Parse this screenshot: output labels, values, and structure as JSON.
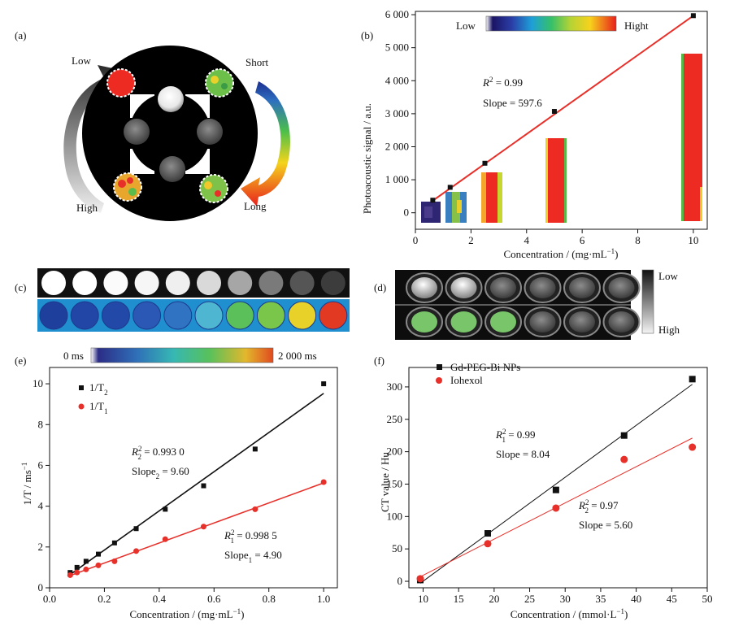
{
  "figure": {
    "panels": [
      {
        "id": "a",
        "label": "(a)",
        "annotations": {
          "low": "Low",
          "high": "High",
          "short": "Short",
          "long": "Long"
        }
      },
      {
        "id": "c",
        "label": "(c)",
        "row_count": 2,
        "wells_per_row": 10
      },
      {
        "id": "d",
        "label": "(d)",
        "legend_low": "Low",
        "legend_high": "High"
      }
    ]
  },
  "colors": {
    "line_red": "#e8302a",
    "marker_black": "#111111",
    "marker_red": "#e8302a",
    "pa_red": "#ee2b22",
    "bg_black": "#000000"
  },
  "chart_data": [
    {
      "id": "b",
      "panel_label": "(b)",
      "type": "scatter",
      "xlabel": "Concentration / (mg·mL",
      "xlabel_sup": "−1",
      "xlabel_end": ")",
      "ylabel": "Photoacoustic signal / a.u.",
      "xlim": [
        0,
        10.5
      ],
      "ylim": [
        -500,
        6100
      ],
      "x_ticks": [
        0,
        2,
        4,
        6,
        8,
        10
      ],
      "x_tick_labels": [
        "0",
        "2",
        "4",
        "6",
        "8",
        "10"
      ],
      "y_ticks": [
        0,
        1000,
        2000,
        3000,
        4000,
        5000,
        6000
      ],
      "y_tick_labels": [
        "0",
        "1 000",
        "2 000",
        "3 000",
        "4 000",
        "5 000",
        "6 000"
      ],
      "colorbar": {
        "low": "Low",
        "high": "Hight"
      },
      "series": [
        {
          "x": [
            0.625,
            1.25,
            2.5,
            5,
            10
          ],
          "y": [
            380,
            770,
            1500,
            3070,
            5970
          ]
        }
      ],
      "fit": {
        "x": [
          0.625,
          10
        ],
        "y": [
          365,
          5970
        ]
      },
      "annotations": [
        {
          "text_italic": "R",
          "sup": "2",
          "text": " = 0.99"
        },
        {
          "text": "Slope = 597.6"
        }
      ],
      "grid": false
    },
    {
      "id": "e",
      "panel_label": "(e)",
      "type": "scatter",
      "xlabel": "Concentration / (mg·mL",
      "xlabel_sup": "−1",
      "xlabel_end": ")",
      "ylabel": "1/T / ms",
      "ylabel_sup": "−1",
      "xlim": [
        0,
        1.05
      ],
      "ylim": [
        0,
        10.8
      ],
      "x_ticks": [
        0,
        0.2,
        0.4,
        0.6,
        0.8,
        1.0
      ],
      "x_tick_labels": [
        "0.0",
        "0.2",
        "0.4",
        "0.6",
        "0.8",
        "1.0"
      ],
      "y_ticks": [
        0,
        2,
        4,
        6,
        8,
        10
      ],
      "y_tick_labels": [
        "0",
        "2",
        "4",
        "6",
        "8",
        "10"
      ],
      "colorbar": {
        "low": "0 ms",
        "high": "2 000 ms"
      },
      "series": [
        {
          "name": "1/T2",
          "legend_main": "1/T",
          "legend_sub": "2",
          "x": [
            0.075,
            0.1,
            0.133,
            0.178,
            0.237,
            0.316,
            0.422,
            0.562,
            0.75,
            1.0
          ],
          "y": [
            0.75,
            1.0,
            1.3,
            1.65,
            2.2,
            2.9,
            3.85,
            5.0,
            6.8,
            10.0
          ]
        },
        {
          "name": "1/T1",
          "legend_main": "1/T",
          "legend_sub": "1",
          "x": [
            0.075,
            0.1,
            0.133,
            0.178,
            0.237,
            0.316,
            0.422,
            0.562,
            0.75,
            1.0
          ],
          "y": [
            0.62,
            0.75,
            0.9,
            1.1,
            1.3,
            1.8,
            2.38,
            3.0,
            3.85,
            5.18
          ]
        }
      ],
      "fits": [
        {
          "x": [
            0.075,
            1.0
          ],
          "y": [
            0.65,
            9.53
          ]
        },
        {
          "x": [
            0.075,
            1.0
          ],
          "y": [
            0.6,
            5.14
          ]
        }
      ],
      "annotations": [
        {
          "italic": "R",
          "sup": "2",
          "sub": "2",
          "text": " = 0.993 0"
        },
        {
          "text": "Slope",
          "sub": "2",
          "text2": " = 9.60"
        },
        {
          "italic": "R",
          "sup": "2",
          "sub": "1",
          "text": " = 0.998 5"
        },
        {
          "text": "Slope",
          "sub": "1",
          "text2": " = 4.90"
        }
      ],
      "grid": false
    },
    {
      "id": "f",
      "panel_label": "(f)",
      "type": "scatter",
      "xlabel": "Concentration / (mmol·L",
      "xlabel_sup": "−1",
      "xlabel_end": ")",
      "ylabel": "CT value / Hu",
      "xlim": [
        8,
        50
      ],
      "ylim": [
        -10,
        330
      ],
      "x_ticks": [
        10,
        15,
        20,
        25,
        30,
        35,
        40,
        45,
        50
      ],
      "x_tick_labels": [
        "10",
        "15",
        "20",
        "25",
        "30",
        "35",
        "40",
        "45",
        "50"
      ],
      "y_ticks": [
        0,
        50,
        100,
        150,
        200,
        250,
        300
      ],
      "y_tick_labels": [
        "0",
        "50",
        "100",
        "150",
        "200",
        "250",
        "300"
      ],
      "series": [
        {
          "name": "Gd-PEG-Bi NPs",
          "x": [
            9.6,
            19.1,
            28.7,
            38.3,
            47.9
          ],
          "y": [
            2,
            74,
            141,
            225,
            312
          ]
        },
        {
          "name": "Iohexol",
          "x": [
            9.6,
            19.1,
            28.7,
            38.3,
            47.9
          ],
          "y": [
            4,
            58,
            113,
            188,
            207
          ]
        }
      ],
      "fits": [
        {
          "x": [
            9.6,
            47.9
          ],
          "y": [
            -3,
            304
          ]
        },
        {
          "x": [
            9.6,
            47.9
          ],
          "y": [
            7,
            221
          ]
        }
      ],
      "annotations": [
        {
          "italic": "R",
          "sup": "2",
          "sub": "1",
          "text": " = 0.99"
        },
        {
          "text": "Slope = 8.04"
        },
        {
          "italic": "R",
          "sup": "2",
          "sub": "2",
          "text": " = 0.97"
        },
        {
          "text": "Slope = 5.60"
        }
      ],
      "grid": false
    }
  ]
}
